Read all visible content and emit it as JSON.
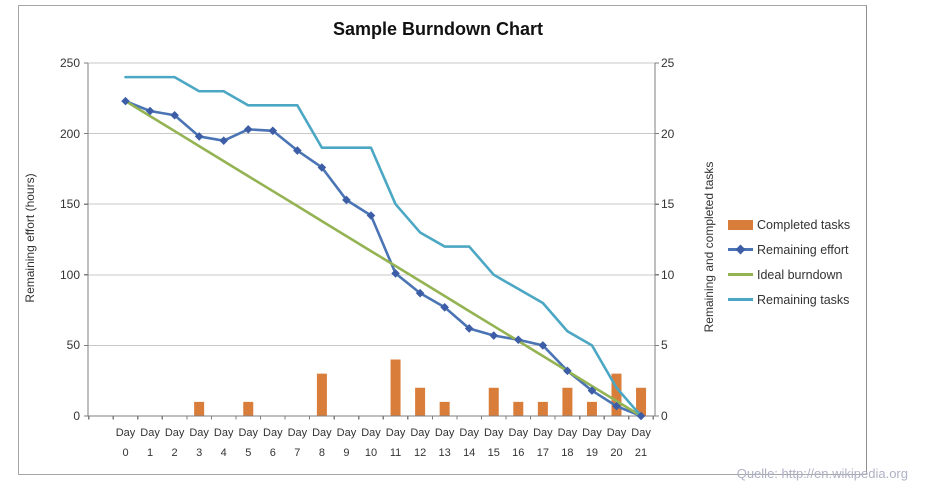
{
  "source_note": "Quelle: http://en.wikipedia.org",
  "colors": {
    "gridline": "#c8c8c8",
    "axis_line": "#7f7f7f",
    "tick_text": "#333333",
    "title_text": "#111111",
    "source_note": "#afb1c5",
    "frame_border": "#a6a6a6"
  },
  "chart_data": {
    "type": "combo-bar-line",
    "title": "Sample Burndown Chart",
    "grid": true,
    "legend_position": "right",
    "categories": [
      "Day 0",
      "Day 1",
      "Day 2",
      "Day 3",
      "Day 4",
      "Day 5",
      "Day 6",
      "Day 7",
      "Day 8",
      "Day 9",
      "Day 10",
      "Day 11",
      "Day 12",
      "Day 13",
      "Day 14",
      "Day 15",
      "Day 16",
      "Day 17",
      "Day 18",
      "Day 19",
      "Day 20",
      "Day 21"
    ],
    "left_axis": {
      "label": "Remaining effort (hours)",
      "min": 0,
      "max": 250,
      "ticks": [
        0,
        50,
        100,
        150,
        200,
        250
      ]
    },
    "right_axis": {
      "label": "Remaining and completed tasks",
      "min": 0,
      "max": 25,
      "ticks": [
        0,
        5,
        10,
        15,
        20,
        25
      ]
    },
    "series": [
      {
        "name": "Completed tasks",
        "type": "bar",
        "axis": "right",
        "color": "#d97d3b",
        "values": [
          0,
          0,
          0,
          1,
          0,
          1,
          0,
          0,
          3,
          0,
          0,
          4,
          2,
          1,
          0,
          2,
          1,
          1,
          2,
          1,
          3,
          2
        ]
      },
      {
        "name": "Remaining effort",
        "type": "line",
        "marker": "diamond",
        "axis": "left",
        "color": "#4a74b4",
        "marker_color": "#3d5ea6",
        "values": [
          223,
          216,
          213,
          198,
          195,
          203,
          202,
          188,
          176,
          153,
          142,
          101,
          87,
          77,
          62,
          57,
          54,
          50,
          32,
          18,
          7,
          0
        ]
      },
      {
        "name": "Ideal burndown",
        "type": "line",
        "axis": "left",
        "color": "#94b353",
        "values": [
          223,
          212.4,
          201.8,
          191.1,
          180.5,
          169.9,
          159.3,
          148.7,
          138.0,
          127.4,
          116.8,
          106.2,
          95.6,
          85.0,
          74.3,
          63.7,
          53.1,
          42.5,
          31.9,
          21.2,
          10.6,
          0
        ]
      },
      {
        "name": "Remaining tasks",
        "type": "line",
        "axis": "right",
        "color": "#4ba7c3",
        "values": [
          24,
          24,
          24,
          23,
          23,
          22,
          22,
          22,
          19,
          19,
          19,
          15,
          13,
          12,
          12,
          10,
          9,
          8,
          6,
          5,
          2,
          0
        ]
      }
    ]
  }
}
